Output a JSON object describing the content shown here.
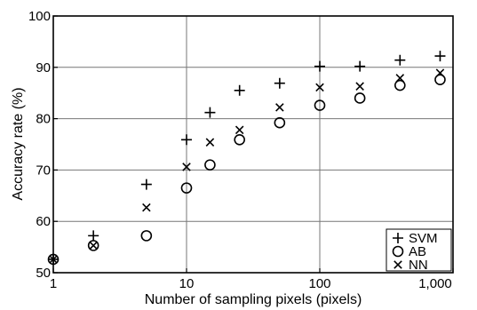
{
  "chart_data": {
    "type": "scatter",
    "title": "",
    "xlabel": "Number of sampling pixels (pixels)",
    "ylabel": "Accuracy rate (%)",
    "x_scale": "log",
    "xlim": [
      1,
      1000
    ],
    "ylim": [
      50,
      100
    ],
    "x_ticks": [
      1,
      10,
      100,
      1000
    ],
    "x_tick_labels": [
      "1",
      "10",
      "100",
      "1,000"
    ],
    "y_ticks": [
      50,
      60,
      70,
      80,
      90,
      100
    ],
    "y_tick_labels": [
      "50",
      "60",
      "70",
      "80",
      "90",
      "100"
    ],
    "grid": true,
    "legend_position": "bottom-right",
    "series": [
      {
        "name": "SVM",
        "marker": "plus",
        "x": [
          1,
          2,
          5,
          10,
          15,
          25,
          50,
          100,
          200,
          400,
          800
        ],
        "y": [
          52.6,
          57.2,
          67.2,
          75.9,
          81.2,
          85.5,
          86.9,
          90.2,
          90.2,
          91.4,
          92.2
        ]
      },
      {
        "name": "AB",
        "marker": "circle",
        "x": [
          1,
          2,
          5,
          10,
          15,
          25,
          50,
          100,
          200,
          400,
          800
        ],
        "y": [
          52.6,
          55.3,
          57.2,
          66.5,
          71.0,
          75.9,
          79.2,
          82.6,
          84.0,
          86.5,
          87.6
        ]
      },
      {
        "name": "NN",
        "marker": "cross",
        "x": [
          1,
          2,
          5,
          10,
          15,
          25,
          50,
          100,
          200,
          400,
          800
        ],
        "y": [
          52.6,
          55.3,
          62.7,
          70.6,
          75.4,
          77.8,
          82.2,
          86.1,
          86.3,
          87.9,
          88.9
        ]
      }
    ]
  }
}
